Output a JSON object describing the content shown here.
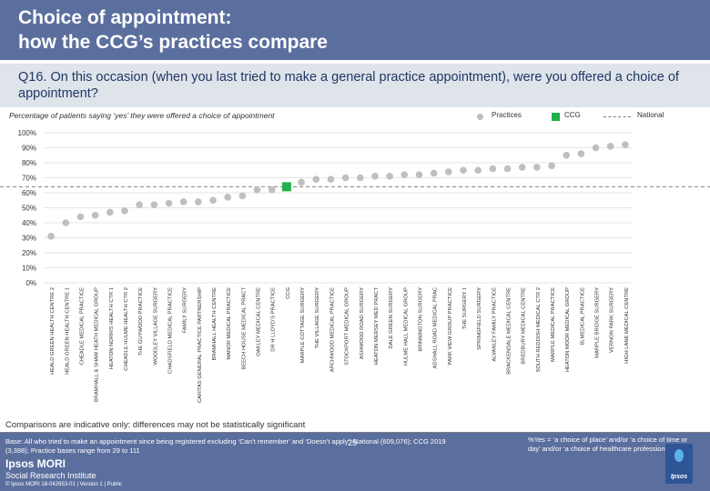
{
  "header": {
    "title_line1": "Choice of appointment:",
    "title_line2": "how the CCG’s practices compare",
    "question": "Q16. On this occasion (when you last tried to make a general practice appointment), were you offered a choice of appointment?"
  },
  "colors": {
    "practice": "#bfbfbf",
    "ccg": "#21b04b",
    "national": "#808080",
    "header": "#5b6f9e"
  },
  "chart_data": {
    "type": "scatter",
    "subtitle": "Percentage of patients saying ‘yes’ they were offered a choice of appointment",
    "legend": {
      "practices": "Practices",
      "ccg": "CCG",
      "national": "National",
      "position": "top-right"
    },
    "ylim": [
      0,
      100
    ],
    "yticks": [
      "0%",
      "10%",
      "20%",
      "30%",
      "40%",
      "50%",
      "60%",
      "70%",
      "80%",
      "90%",
      "100%"
    ],
    "national_value": 64,
    "categories": [
      "HEALD GREEN HEALTH CENTRE 2",
      "HEALD GREEN HEALTH CENTRE 1",
      "CHEADLE MEDICAL PRACTICE",
      "BRAMHALL & SHAW HEATH MEDICAL GROUP",
      "HEATON NORRIS HEALTH CTR 1",
      "CHEADLE HULME HEALTH CTR 2",
      "THE GUYWOOD PRACTICE",
      "WOODLEY VILLAGE SURGERY",
      "CHADSFIELD MEDICAL PRACTICE",
      "FAMILY SURGERY",
      "CARITAS GENERAL PRACTICE PARTNERSHIP",
      "BRAMHALL HEALTH CENTRE",
      "MANOR MEDICAL PRACTICE",
      "BEECH HOUSE MEDICAL PRACT",
      "OAKLEY MEDICAL CENTRE",
      "DR H LLOYD'S PRACTICE",
      "CCG",
      "MARPLE COTTAGE SURGERY",
      "THE VILLAGE SURGERY",
      "ARCHWOOD MEDICAL PRACTICE",
      "STOCKPORT MEDICAL GROUP",
      "ASHWOOD ROAD SURGERY",
      "HEATON MERSEY MED PRACT",
      "DALE GREEN SURGERY",
      "HULME HALL MEDICAL GROUP",
      "BRINNINGTON SURGERY",
      "ADSHALL ROAD MEDICAL PRAC",
      "PARK VIEW GROUP PRACTICE",
      "THE SURGERY 1",
      "SPRINGFIELD SURGERY",
      "ALVANLEY FAMILY PRACTICE",
      "BRACKENDALE MEDICAL CENTRE",
      "BREDBURY MEDICAL CENTRE",
      "SOUTH REDDISH MEDICAL CTR 2",
      "MARPLE MEDICAL PRACTICE",
      "HEATON MOOR MEDICAL GROUP",
      "BLMEDICAL PRACTICE",
      "MARPLE BRIDGE SURGERY",
      "VERNON PARK SURGERY",
      "HIGH LANE MEDICAL CENTRE"
    ],
    "values": [
      31,
      40,
      44,
      45,
      47,
      48,
      52,
      52,
      53,
      54,
      54,
      55,
      57,
      58,
      62,
      62,
      64,
      67,
      69,
      69,
      70,
      70,
      71,
      71,
      72,
      72,
      73,
      74,
      75,
      75,
      76,
      76,
      77,
      77,
      78,
      85,
      86,
      90,
      91,
      92
    ],
    "ccg_index": 16
  },
  "note": "Comparisons are indicative only: differences may not be statistically significant",
  "footer": {
    "base_line1": "Base: All who tried to make an appointment since being registered excluding ‘Can’t remember’ and ‘Doesn’t apply’: National (609,076); CCG 2019",
    "base_line2": "(3,398); Practice bases range from 29 to 111",
    "definition": "%Yes = ‘a choice of place’ and/or ‘a choice of time or day’ and/or ‘a choice of healthcare professional’",
    "brand_name": "Ipsos MORI",
    "brand_unit": "Social Research Institute",
    "copyright": "© Ipsos MORI     18-042653-01 | Version 1 | Public",
    "page_number": "25",
    "logo_text": "Ipsos"
  }
}
